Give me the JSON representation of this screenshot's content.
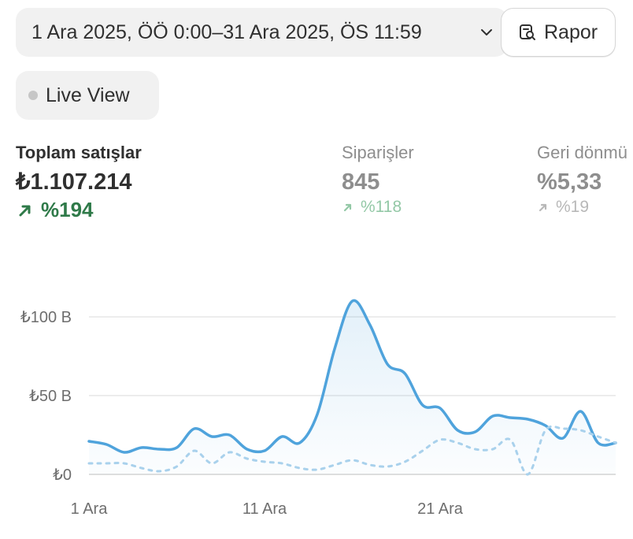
{
  "header": {
    "date_range": "1 Ara 2025, ÖÖ 0:00–31 Ara 2025, ÖS 11:59",
    "date_range_icon": "chevron-down-icon",
    "report_label": "Rapor",
    "report_icon": "report-search-icon"
  },
  "live_view": {
    "label": "Live View",
    "status_color": "#c6c6c6"
  },
  "metrics": [
    {
      "title": "Toplam satışlar",
      "value": "₺1.107.214",
      "change": "%194",
      "trend": "up",
      "color": "#2f7a49"
    },
    {
      "title": "Siparişler",
      "value": "845",
      "change": "%118",
      "trend": "up",
      "color": "#93c8a6"
    },
    {
      "title": "Geri dönmü",
      "value": "%5,33",
      "change": "%19",
      "trend": "up",
      "color": "#b8b8b8"
    }
  ],
  "chart_data": {
    "type": "line",
    "y_unit": "₺ (B = bin)",
    "ylim": [
      0,
      100
    ],
    "yticks": [
      "₺0",
      "₺50 B",
      "₺100 B"
    ],
    "xticks": [
      {
        "day": 1,
        "label": "1 Ara"
      },
      {
        "day": 11,
        "label": "11 Ara"
      },
      {
        "day": 21,
        "label": "21 Ara"
      }
    ],
    "grid": true,
    "x": [
      1,
      2,
      3,
      4,
      5,
      6,
      7,
      8,
      9,
      10,
      11,
      12,
      13,
      14,
      15,
      16,
      17,
      18,
      19,
      20,
      21,
      22,
      23,
      24,
      25,
      26,
      27,
      28,
      29,
      30,
      31
    ],
    "series": [
      {
        "name": "",
        "style": "solid",
        "color": "#4fa3dc",
        "values": [
          21,
          19,
          14,
          17,
          16,
          17,
          29,
          24,
          25,
          16,
          15,
          24,
          20,
          38,
          80,
          110,
          95,
          70,
          64,
          44,
          42,
          28,
          27,
          37,
          36,
          35,
          31,
          23,
          40,
          20,
          20
        ]
      },
      {
        "name": "",
        "style": "dashed",
        "color": "#a9d1ec",
        "values": [
          7,
          7,
          7,
          4,
          2,
          5,
          15,
          7,
          14,
          10,
          8,
          7,
          4,
          3,
          6,
          9,
          6,
          5,
          8,
          15,
          22,
          20,
          16,
          16,
          22,
          0,
          28,
          29,
          28,
          24,
          20
        ]
      }
    ]
  }
}
